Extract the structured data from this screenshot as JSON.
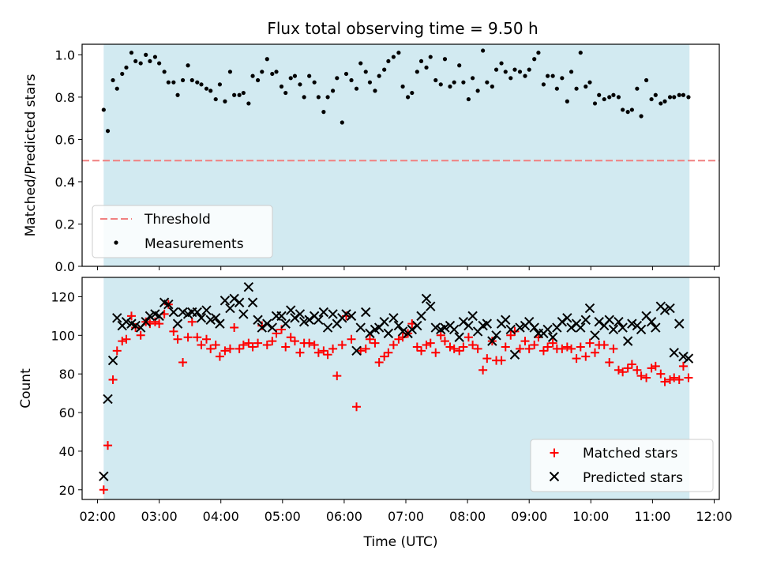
{
  "title": "Flux total observing time = 9.50 h",
  "colors": {
    "band": "#add8e6",
    "threshold": "#f08080",
    "measurements": "#000000",
    "matched": "#ff0000",
    "predicted": "#000000"
  },
  "chart_data": [
    {
      "type": "scatter",
      "ylabel": "Matched/Predicted stars",
      "xlabel": "",
      "ylim": [
        0,
        1.05
      ],
      "yticks": [
        "0.0",
        "0.2",
        "0.4",
        "0.6",
        "0.8",
        "1.0"
      ],
      "observing_window": [
        "02:06",
        "11:36"
      ],
      "threshold": {
        "label": "Threshold",
        "value": 0.5,
        "style": "dashed"
      },
      "legend": {
        "location": "lower-left",
        "entries": [
          "Threshold",
          "Measurements"
        ]
      },
      "series": [
        {
          "name": "Measurements",
          "marker": "dot",
          "x": [
            "02:06",
            "02:10",
            "02:15",
            "02:19",
            "02:24",
            "02:28",
            "02:33",
            "02:37",
            "02:42",
            "02:47",
            "02:51",
            "02:56",
            "03:00",
            "03:05",
            "03:09",
            "03:14",
            "03:18",
            "03:23",
            "03:28",
            "03:32",
            "03:37",
            "03:41",
            "03:46",
            "03:50",
            "03:55",
            "03:59",
            "04:04",
            "04:09",
            "04:13",
            "04:18",
            "04:22",
            "04:27",
            "04:31",
            "04:36",
            "04:40",
            "04:45",
            "04:50",
            "04:54",
            "04:59",
            "05:03",
            "05:08",
            "05:12",
            "05:17",
            "05:21",
            "05:26",
            "05:31",
            "05:35",
            "05:40",
            "05:44",
            "05:49",
            "05:53",
            "05:58",
            "06:02",
            "06:07",
            "06:12",
            "06:16",
            "06:21",
            "06:25",
            "06:30",
            "06:34",
            "06:39",
            "06:43",
            "06:48",
            "06:53",
            "06:57",
            "07:02",
            "07:06",
            "07:11",
            "07:15",
            "07:20",
            "07:24",
            "07:29",
            "07:34",
            "07:38",
            "07:43",
            "07:47",
            "07:52",
            "07:56",
            "08:01",
            "08:05",
            "08:10",
            "08:15",
            "08:19",
            "08:24",
            "08:28",
            "08:33",
            "08:37",
            "08:42",
            "08:46",
            "08:51",
            "08:56",
            "09:00",
            "09:05",
            "09:09",
            "09:14",
            "09:18",
            "09:23",
            "09:27",
            "09:32",
            "09:37",
            "09:41",
            "09:46",
            "09:50",
            "09:55",
            "09:59",
            "10:04",
            "10:08",
            "10:13",
            "10:18",
            "10:22",
            "10:27",
            "10:31",
            "10:36",
            "10:40",
            "10:45",
            "10:49",
            "10:54",
            "10:59",
            "11:03",
            "11:08",
            "11:12",
            "11:17",
            "11:21",
            "11:26",
            "11:30",
            "11:35"
          ],
          "y": [
            0.74,
            0.64,
            0.88,
            0.84,
            0.91,
            0.94,
            1.01,
            0.97,
            0.96,
            1.0,
            0.97,
            0.99,
            0.96,
            0.92,
            0.87,
            0.87,
            0.81,
            0.88,
            0.95,
            0.88,
            0.87,
            0.86,
            0.84,
            0.83,
            0.79,
            0.86,
            0.78,
            0.92,
            0.81,
            0.81,
            0.82,
            0.77,
            0.9,
            0.88,
            0.92,
            0.98,
            0.91,
            0.92,
            0.85,
            0.82,
            0.89,
            0.9,
            0.86,
            0.8,
            0.9,
            0.87,
            0.8,
            0.73,
            0.8,
            0.83,
            0.89,
            0.68,
            0.91,
            0.88,
            0.84,
            0.96,
            0.92,
            0.87,
            0.83,
            0.9,
            0.93,
            0.97,
            0.99,
            1.01,
            0.85,
            0.8,
            0.82,
            0.92,
            0.97,
            0.94,
            0.99,
            0.88,
            0.86,
            0.98,
            0.85,
            0.87,
            0.95,
            0.87,
            0.79,
            0.89,
            0.83,
            1.02,
            0.87,
            0.85,
            0.93,
            0.96,
            0.92,
            0.89,
            0.93,
            0.92,
            0.9,
            0.93,
            0.98,
            1.01,
            0.86,
            0.9,
            0.9,
            0.84,
            0.89,
            0.78,
            0.92,
            0.84,
            1.01,
            0.85,
            0.87,
            0.77,
            0.81,
            0.79,
            0.8,
            0.81,
            0.8,
            0.74,
            0.73,
            0.74,
            0.84,
            0.71,
            0.88,
            0.79,
            0.81,
            0.77,
            0.78,
            0.8,
            0.8,
            0.81,
            0.81,
            0.8
          ]
        }
      ]
    },
    {
      "type": "scatter",
      "ylabel": "Count",
      "xlabel": "Time (UTC)",
      "ylim": [
        15,
        130
      ],
      "yticks": [
        "20",
        "40",
        "60",
        "80",
        "100",
        "120"
      ],
      "xticks": [
        "02:00",
        "03:00",
        "04:00",
        "05:00",
        "06:00",
        "07:00",
        "08:00",
        "09:00",
        "10:00",
        "11:00",
        "12:00"
      ],
      "xlim": [
        "01:45",
        "12:05"
      ],
      "observing_window": [
        "02:06",
        "11:36"
      ],
      "legend": {
        "location": "lower-right",
        "entries": [
          "Matched stars",
          "Predicted stars"
        ]
      },
      "series": [
        {
          "name": "Matched stars",
          "marker": "plus",
          "x": [
            "02:06",
            "02:10",
            "02:15",
            "02:19",
            "02:24",
            "02:28",
            "02:33",
            "02:37",
            "02:42",
            "02:47",
            "02:51",
            "02:56",
            "03:00",
            "03:05",
            "03:09",
            "03:14",
            "03:18",
            "03:23",
            "03:28",
            "03:32",
            "03:37",
            "03:41",
            "03:46",
            "03:50",
            "03:55",
            "03:59",
            "04:04",
            "04:09",
            "04:13",
            "04:18",
            "04:22",
            "04:27",
            "04:31",
            "04:36",
            "04:40",
            "04:45",
            "04:50",
            "04:54",
            "04:59",
            "05:03",
            "05:08",
            "05:12",
            "05:17",
            "05:21",
            "05:26",
            "05:31",
            "05:35",
            "05:40",
            "05:44",
            "05:49",
            "05:53",
            "05:58",
            "06:02",
            "06:07",
            "06:12",
            "06:16",
            "06:21",
            "06:25",
            "06:30",
            "06:34",
            "06:39",
            "06:43",
            "06:48",
            "06:53",
            "06:57",
            "07:02",
            "07:06",
            "07:11",
            "07:15",
            "07:20",
            "07:24",
            "07:29",
            "07:34",
            "07:38",
            "07:43",
            "07:47",
            "07:52",
            "07:56",
            "08:01",
            "08:05",
            "08:10",
            "08:15",
            "08:19",
            "08:24",
            "08:28",
            "08:33",
            "08:37",
            "08:42",
            "08:46",
            "08:51",
            "08:56",
            "09:00",
            "09:05",
            "09:09",
            "09:14",
            "09:18",
            "09:23",
            "09:27",
            "09:32",
            "09:37",
            "09:41",
            "09:46",
            "09:50",
            "09:55",
            "09:59",
            "10:04",
            "10:08",
            "10:13",
            "10:18",
            "10:22",
            "10:27",
            "10:31",
            "10:36",
            "10:40",
            "10:45",
            "10:49",
            "10:54",
            "10:59",
            "11:03",
            "11:08",
            "11:12",
            "11:17",
            "11:21",
            "11:26",
            "11:30",
            "11:35"
          ],
          "y": [
            20,
            43,
            77,
            92,
            97,
            98,
            110,
            104,
            100,
            107,
            106,
            107,
            106,
            111,
            116,
            102,
            98,
            86,
            99,
            107,
            99,
            95,
            98,
            93,
            95,
            89,
            92,
            93,
            104,
            93,
            95,
            96,
            94,
            96,
            105,
            95,
            97,
            101,
            103,
            94,
            99,
            97,
            91,
            96,
            96,
            95,
            91,
            92,
            90,
            93,
            79,
            95,
            110,
            98,
            63,
            92,
            93,
            98,
            96,
            86,
            89,
            91,
            95,
            98,
            99,
            101,
            106,
            94,
            92,
            95,
            96,
            91,
            100,
            97,
            94,
            93,
            92,
            94,
            99,
            95,
            93,
            82,
            88,
            97,
            87,
            87,
            94,
            100,
            102,
            93,
            97,
            93,
            95,
            99,
            92,
            94,
            96,
            93,
            93,
            94,
            93,
            88,
            94,
            89,
            96,
            91,
            95,
            95,
            86,
            93,
            82,
            81,
            83,
            85,
            82,
            79,
            78,
            83,
            84,
            80,
            76,
            77,
            78,
            77,
            84,
            78
          ]
        },
        {
          "name": "Predicted stars",
          "marker": "x",
          "x": [
            "02:06",
            "02:10",
            "02:15",
            "02:19",
            "02:24",
            "02:28",
            "02:33",
            "02:37",
            "02:42",
            "02:47",
            "02:51",
            "02:56",
            "03:00",
            "03:05",
            "03:09",
            "03:14",
            "03:18",
            "03:23",
            "03:28",
            "03:32",
            "03:37",
            "03:41",
            "03:46",
            "03:50",
            "03:55",
            "03:59",
            "04:04",
            "04:09",
            "04:13",
            "04:18",
            "04:22",
            "04:27",
            "04:31",
            "04:36",
            "04:40",
            "04:45",
            "04:50",
            "04:54",
            "04:59",
            "05:03",
            "05:08",
            "05:12",
            "05:17",
            "05:21",
            "05:26",
            "05:31",
            "05:35",
            "05:40",
            "05:44",
            "05:49",
            "05:53",
            "05:58",
            "06:02",
            "06:07",
            "06:12",
            "06:16",
            "06:21",
            "06:25",
            "06:30",
            "06:34",
            "06:39",
            "06:43",
            "06:48",
            "06:53",
            "06:57",
            "07:02",
            "07:06",
            "07:11",
            "07:15",
            "07:20",
            "07:24",
            "07:29",
            "07:34",
            "07:38",
            "07:43",
            "07:47",
            "07:52",
            "07:56",
            "08:01",
            "08:05",
            "08:10",
            "08:15",
            "08:19",
            "08:24",
            "08:28",
            "08:33",
            "08:37",
            "08:42",
            "08:46",
            "08:51",
            "08:56",
            "09:00",
            "09:05",
            "09:09",
            "09:14",
            "09:18",
            "09:23",
            "09:27",
            "09:32",
            "09:37",
            "09:41",
            "09:46",
            "09:50",
            "09:55",
            "09:59",
            "10:04",
            "10:08",
            "10:13",
            "10:18",
            "10:22",
            "10:27",
            "10:31",
            "10:36",
            "10:40",
            "10:45",
            "10:49",
            "10:54",
            "10:59",
            "11:03",
            "11:08",
            "11:12",
            "11:17",
            "11:21",
            "11:26",
            "11:30",
            "11:35"
          ],
          "y": [
            27,
            67,
            87,
            109,
            105,
            107,
            106,
            105,
            104,
            107,
            110,
            111,
            110,
            117,
            116,
            112,
            106,
            112,
            111,
            112,
            112,
            109,
            113,
            108,
            109,
            106,
            118,
            114,
            119,
            117,
            111,
            125,
            117,
            108,
            104,
            106,
            104,
            110,
            110,
            106,
            113,
            109,
            111,
            107,
            108,
            110,
            108,
            112,
            104,
            111,
            106,
            109,
            111,
            110,
            92,
            104,
            112,
            101,
            103,
            104,
            107,
            101,
            109,
            105,
            102,
            101,
            103,
            105,
            110,
            119,
            115,
            104,
            103,
            104,
            105,
            103,
            99,
            107,
            105,
            110,
            102,
            105,
            106,
            97,
            100,
            106,
            108,
            103,
            90,
            104,
            105,
            107,
            104,
            101,
            101,
            103,
            99,
            104,
            107,
            109,
            104,
            106,
            104,
            108,
            114,
            100,
            107,
            105,
            108,
            103,
            107,
            104,
            97,
            106,
            105,
            103,
            110,
            107,
            104,
            115,
            113,
            114,
            91,
            106,
            89,
            88
          ]
        }
      ]
    }
  ]
}
